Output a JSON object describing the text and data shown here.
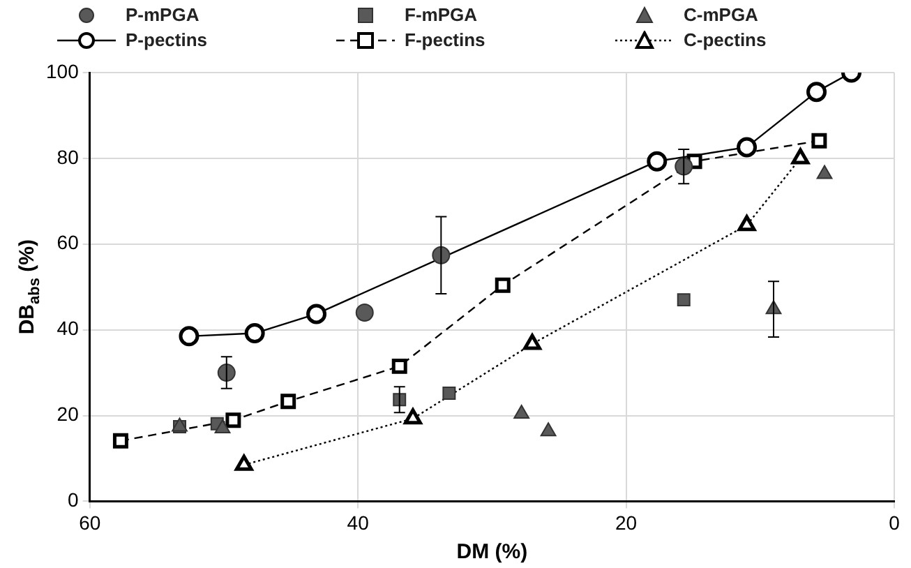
{
  "chart_data": {
    "type": "scatter",
    "xlabel": "DM (%)",
    "ylabel": "DB$_{abs}$ (%)",
    "xlim": [
      60,
      0
    ],
    "xticks": [
      60,
      40,
      20,
      0
    ],
    "ylim": [
      0,
      100
    ],
    "yticks": [
      0,
      20,
      40,
      60,
      80,
      100
    ],
    "grid": true,
    "legend": "top",
    "series": [
      {
        "name": "P-mPGA",
        "type": "scatter",
        "marker": "circle",
        "color": "#595959",
        "x": [
          49.8,
          39.5,
          33.8,
          15.7
        ],
        "values": [
          30.0,
          44.0,
          57.4,
          78.1
        ],
        "errors": [
          3.7,
          null,
          9,
          4
        ]
      },
      {
        "name": "F-mPGA",
        "type": "scatter",
        "marker": "square",
        "color": "#595959",
        "x": [
          53.3,
          50.5,
          36.9,
          33.2,
          15.7
        ],
        "values": [
          17.4,
          18.1,
          23.7,
          25.2,
          47.0
        ],
        "errors": [
          null,
          null,
          3,
          null,
          null
        ]
      },
      {
        "name": "C-mPGA",
        "type": "scatter",
        "marker": "triangle",
        "color": "#595959",
        "x": [
          53.3,
          50.1,
          27.8,
          25.8,
          9.0,
          5.2
        ],
        "values": [
          17.4,
          17.0,
          20.4,
          16.3,
          44.8,
          76.3
        ],
        "errors": [
          null,
          null,
          null,
          null,
          6.5,
          null
        ]
      },
      {
        "name": "P-pectins",
        "type": "line",
        "marker": "circle",
        "line_style": "solid",
        "color": "#000000",
        "x": [
          52.6,
          47.7,
          43.1,
          17.7,
          11.0,
          5.8,
          3.2
        ],
        "values": [
          38.5,
          39.2,
          43.7,
          79.3,
          82.6,
          95.5,
          100
        ]
      },
      {
        "name": "F-pectins",
        "type": "line",
        "marker": "square",
        "line_style": "dashed",
        "color": "#000000",
        "x": [
          57.7,
          49.3,
          45.2,
          36.9,
          29.2,
          14.9,
          5.6
        ],
        "values": [
          14.1,
          18.9,
          23.3,
          31.5,
          50.4,
          79.3,
          84.1
        ]
      },
      {
        "name": "C-pectins",
        "type": "line",
        "marker": "triangle",
        "line_style": "dotted",
        "color": "#000000",
        "x": [
          48.5,
          35.9,
          27.0,
          11.0,
          7.0
        ],
        "values": [
          8.5,
          19.3,
          36.7,
          64.4,
          80.0
        ]
      }
    ]
  }
}
